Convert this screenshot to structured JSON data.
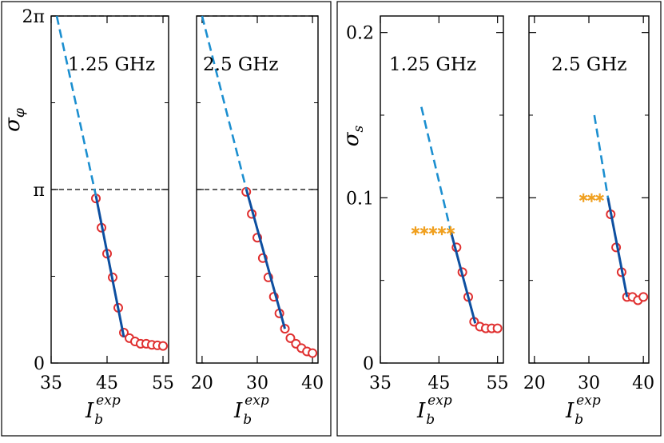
{
  "chart_data": [
    {
      "type": "line",
      "title": "1.25 GHz",
      "ylabel": "σ_φ",
      "xlabel": "I_b^exp",
      "xlim": [
        35,
        56
      ],
      "ylim": [
        0,
        6.2832
      ],
      "x_ticks": [
        35,
        45,
        55
      ],
      "y_ticks": [
        {
          "value": 0,
          "label": "0"
        },
        {
          "value": 3.1416,
          "label": "π"
        },
        {
          "value": 6.2832,
          "label": "2π"
        }
      ],
      "y_minor_ticks": [
        1.5708,
        4.7124
      ],
      "reference_lines": [
        3.1416,
        6.2832
      ],
      "series": [
        {
          "name": "measured",
          "style": "circles",
          "color": "#e03030",
          "x": [
            43,
            44,
            45,
            46,
            47,
            48,
            49,
            50,
            51,
            52,
            53,
            54,
            55
          ],
          "y": [
            2.98,
            2.45,
            1.98,
            1.55,
            1.0,
            0.55,
            0.45,
            0.39,
            0.35,
            0.35,
            0.33,
            0.32,
            0.31
          ]
        },
        {
          "name": "fit",
          "style": "solid",
          "color": "#0d4fa0",
          "x": [
            43,
            48
          ],
          "y": [
            3.03,
            0.47
          ]
        },
        {
          "name": "extrapolation",
          "style": "dashed",
          "color": "#1c8fd0",
          "x": [
            36,
            43
          ],
          "y": [
            6.2832,
            3.03
          ]
        }
      ]
    },
    {
      "type": "line",
      "title": "2.5 GHz",
      "xlabel": "I_b^exp",
      "xlim": [
        19,
        41
      ],
      "ylim": [
        0,
        6.2832
      ],
      "x_ticks": [
        20,
        30,
        40
      ],
      "y_minor_ticks": [
        1.5708,
        4.7124
      ],
      "reference_lines": [
        3.1416,
        6.2832
      ],
      "series": [
        {
          "name": "measured",
          "style": "circles",
          "color": "#e03030",
          "x": [
            28,
            29,
            30,
            31,
            32,
            33,
            34,
            35,
            36,
            37,
            38,
            39,
            40
          ],
          "y": [
            3.1,
            2.7,
            2.27,
            1.9,
            1.55,
            1.2,
            0.9,
            0.62,
            0.45,
            0.35,
            0.27,
            0.21,
            0.18
          ]
        },
        {
          "name": "fit",
          "style": "solid",
          "color": "#0d4fa0",
          "x": [
            28,
            35
          ],
          "y": [
            3.15,
            0.62
          ]
        },
        {
          "name": "extrapolation",
          "style": "dashed",
          "color": "#1c8fd0",
          "x": [
            20,
            28
          ],
          "y": [
            6.2832,
            3.15
          ]
        }
      ]
    },
    {
      "type": "line",
      "title": "1.25 GHz",
      "ylabel": "σ_s",
      "xlabel": "I_b^exp",
      "xlim": [
        35,
        56
      ],
      "ylim": [
        0,
        0.21
      ],
      "x_ticks": [
        35,
        45,
        55
      ],
      "y_ticks": [
        {
          "value": 0,
          "label": "0"
        },
        {
          "value": 0.1,
          "label": "0.1"
        },
        {
          "value": 0.2,
          "label": "0.2"
        }
      ],
      "y_minor_ticks": [
        0.05,
        0.15
      ],
      "series": [
        {
          "name": "measured",
          "style": "circles",
          "color": "#e03030",
          "x": [
            48,
            49,
            50,
            51,
            52,
            53,
            54,
            55
          ],
          "y": [
            0.07,
            0.055,
            0.04,
            0.025,
            0.022,
            0.021,
            0.021,
            0.021
          ]
        },
        {
          "name": "fit",
          "style": "solid",
          "color": "#0d4fa0",
          "x": [
            47,
            51.2
          ],
          "y": [
            0.08,
            0.024
          ]
        },
        {
          "name": "extrapolation",
          "style": "dashed",
          "color": "#1c8fd0",
          "x": [
            42,
            47
          ],
          "y": [
            0.155,
            0.08
          ]
        },
        {
          "name": "threshold",
          "style": "stars",
          "color": "#f0a020",
          "x": [
            41,
            42.5,
            44,
            45.5,
            47
          ],
          "y": [
            0.08,
            0.08,
            0.08,
            0.08,
            0.08
          ]
        }
      ]
    },
    {
      "type": "line",
      "title": "2.5 GHz",
      "xlabel": "I_b^exp",
      "xlim": [
        19,
        41
      ],
      "ylim": [
        0,
        0.21
      ],
      "x_ticks": [
        20,
        30,
        40
      ],
      "y_minor_ticks": [
        0.05,
        0.15
      ],
      "series": [
        {
          "name": "measured",
          "style": "circles",
          "color": "#e03030",
          "x": [
            34,
            35,
            36,
            37,
            38,
            39,
            40
          ],
          "y": [
            0.09,
            0.07,
            0.055,
            0.04,
            0.04,
            0.038,
            0.04
          ]
        },
        {
          "name": "fit",
          "style": "solid",
          "color": "#0d4fa0",
          "x": [
            33.5,
            37
          ],
          "y": [
            0.1,
            0.04
          ]
        },
        {
          "name": "extrapolation",
          "style": "dashed",
          "color": "#1c8fd0",
          "x": [
            31,
            33.5
          ],
          "y": [
            0.15,
            0.1
          ]
        },
        {
          "name": "threshold",
          "style": "stars",
          "color": "#f0a020",
          "x": [
            29,
            30.5,
            32
          ],
          "y": [
            0.1,
            0.1,
            0.1
          ]
        }
      ]
    }
  ]
}
